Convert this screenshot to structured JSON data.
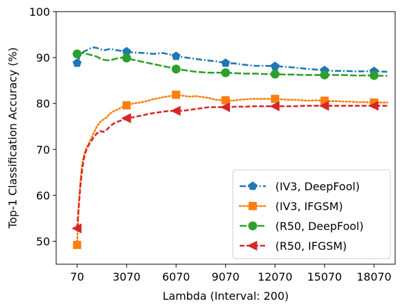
{
  "chart_data": {
    "type": "line",
    "title": "",
    "xlabel": "Lambda (Interval: 200)",
    "ylabel": "Top-1 Classification Accuracy (%)",
    "xlim": [
      -1200,
      19350
    ],
    "ylim": [
      45,
      100
    ],
    "xticks": [
      70,
      3070,
      6070,
      9070,
      12070,
      15070,
      18070
    ],
    "xtick_labels": [
      "70",
      "3070",
      "6070",
      "9070",
      "12070",
      "15070",
      "18070"
    ],
    "yticks": [
      50,
      60,
      70,
      80,
      90,
      100
    ],
    "ytick_labels": [
      "50",
      "60",
      "70",
      "80",
      "90",
      "100"
    ],
    "grid": false,
    "legend_position": "lower-right",
    "series": [
      {
        "name": "(IV3, DeepFool)",
        "color": "#1f77b4",
        "linestyle": "dash-dot",
        "marker": "pentagon",
        "x": [
          70,
          270,
          470,
          670,
          870,
          1070,
          1270,
          1470,
          1670,
          1870,
          2070,
          2470,
          2870,
          3070,
          3470,
          4070,
          4670,
          5270,
          5870,
          6070,
          6670,
          7270,
          7870,
          8470,
          9070,
          9670,
          10270,
          10870,
          11470,
          12070,
          12670,
          13270,
          13870,
          14470,
          15070,
          15670,
          16270,
          16870,
          17470,
          18070,
          18870
        ],
        "y": [
          88.8,
          90.5,
          91.3,
          91.6,
          92.0,
          92.2,
          92.1,
          91.8,
          91.6,
          91.7,
          91.9,
          91.6,
          91.4,
          91.3,
          91.1,
          91.0,
          90.8,
          91.0,
          90.5,
          90.3,
          90.0,
          89.7,
          89.4,
          89.2,
          88.8,
          88.7,
          88.4,
          88.2,
          88.2,
          88.1,
          88.0,
          87.8,
          87.6,
          87.4,
          87.2,
          87.1,
          87.1,
          87.0,
          87.0,
          87.0,
          86.9
        ],
        "marker_x": [
          70,
          3070,
          6070,
          9070,
          12070,
          15070,
          18070
        ],
        "marker_y": [
          88.8,
          91.3,
          90.3,
          88.8,
          88.1,
          87.2,
          87.0
        ]
      },
      {
        "name": "(IV3, IFGSM)",
        "color": "#ff7f0e",
        "linestyle": "dotted",
        "marker": "square",
        "x": [
          70,
          170,
          270,
          370,
          470,
          570,
          670,
          870,
          1070,
          1270,
          1470,
          1670,
          1870,
          2070,
          2270,
          2470,
          2670,
          2870,
          3070,
          3470,
          3870,
          4270,
          4670,
          5070,
          5470,
          5870,
          6070,
          6470,
          6870,
          7270,
          7670,
          8070,
          8470,
          8870,
          9070,
          9470,
          9870,
          10270,
          10670,
          11070,
          11470,
          12070,
          12470,
          12870,
          13270,
          13670,
          14070,
          14470,
          15070,
          15470,
          15870,
          16270,
          16670,
          17070,
          17470,
          18070,
          18870
        ],
        "y": [
          49.2,
          58.0,
          63.0,
          66.5,
          68.5,
          69.8,
          70.5,
          72.0,
          73.5,
          75.0,
          76.0,
          76.5,
          77.0,
          77.8,
          78.3,
          78.6,
          79.0,
          79.3,
          79.6,
          80.0,
          80.2,
          80.5,
          80.9,
          81.2,
          81.5,
          81.7,
          81.9,
          81.7,
          81.5,
          81.6,
          81.4,
          81.2,
          80.8,
          80.7,
          80.7,
          80.6,
          80.8,
          80.9,
          81.0,
          81.0,
          81.0,
          81.0,
          80.9,
          80.8,
          80.8,
          80.7,
          80.6,
          80.7,
          80.6,
          80.5,
          80.5,
          80.4,
          80.4,
          80.3,
          80.3,
          80.2,
          80.2
        ],
        "marker_x": [
          70,
          3070,
          6070,
          9070,
          12070,
          15070,
          18070
        ],
        "marker_y": [
          49.2,
          79.6,
          81.9,
          80.7,
          81.0,
          80.6,
          80.2
        ]
      },
      {
        "name": "(R50, DeepFool)",
        "color": "#2ca02c",
        "linestyle": "long-dash",
        "marker": "circle",
        "x": [
          70,
          370,
          670,
          970,
          1270,
          1570,
          1870,
          2170,
          2470,
          2770,
          3070,
          3470,
          3870,
          4270,
          4670,
          5070,
          5470,
          5870,
          6070,
          6470,
          6870,
          7270,
          7670,
          8070,
          8470,
          9070,
          9670,
          10270,
          10870,
          11470,
          12070,
          12670,
          13270,
          13870,
          14470,
          15070,
          15670,
          16270,
          16870,
          17470,
          18070,
          18870
        ],
        "y": [
          90.8,
          91.0,
          90.8,
          90.5,
          90.2,
          89.6,
          89.4,
          89.5,
          89.8,
          90.0,
          89.9,
          89.5,
          89.2,
          88.9,
          88.6,
          88.3,
          88.0,
          87.7,
          87.5,
          87.3,
          87.1,
          86.9,
          86.8,
          86.7,
          86.7,
          86.7,
          86.6,
          86.5,
          86.5,
          86.4,
          86.4,
          86.3,
          86.3,
          86.2,
          86.2,
          86.2,
          86.2,
          86.2,
          86.1,
          86.1,
          86.1,
          86.0
        ],
        "marker_x": [
          70,
          3070,
          6070,
          9070,
          12070,
          15070,
          18070
        ],
        "marker_y": [
          90.8,
          89.9,
          87.5,
          86.7,
          86.4,
          86.2,
          86.1
        ]
      },
      {
        "name": "(R50, IFGSM)",
        "color": "#d62728",
        "linestyle": "dashed",
        "marker": "triangle-left",
        "x": [
          70,
          170,
          270,
          370,
          470,
          570,
          670,
          870,
          1070,
          1270,
          1470,
          1670,
          1870,
          2070,
          2270,
          2470,
          2670,
          2870,
          3070,
          3470,
          3870,
          4270,
          4670,
          5070,
          5470,
          5870,
          6070,
          6470,
          6870,
          7270,
          7670,
          8070,
          8470,
          8870,
          9070,
          9670,
          10270,
          10870,
          11470,
          12070,
          12670,
          13270,
          13870,
          14470,
          15070,
          15670,
          16270,
          16870,
          17470,
          18070,
          18870
        ],
        "y": [
          52.8,
          57.5,
          62.0,
          65.5,
          67.8,
          69.2,
          70.3,
          71.5,
          72.6,
          73.5,
          74.0,
          73.8,
          74.3,
          75.0,
          75.6,
          76.0,
          76.2,
          76.5,
          76.8,
          77.0,
          77.3,
          77.6,
          77.9,
          78.1,
          78.3,
          78.4,
          78.4,
          78.4,
          78.6,
          78.8,
          79.0,
          79.2,
          79.2,
          79.2,
          79.2,
          79.3,
          79.3,
          79.4,
          79.4,
          79.4,
          79.4,
          79.4,
          79.5,
          79.5,
          79.5,
          79.5,
          79.5,
          79.5,
          79.5,
          79.5,
          79.5
        ],
        "marker_x": [
          70,
          3070,
          6070,
          9070,
          12070,
          15070,
          18070
        ],
        "marker_y": [
          52.8,
          76.8,
          78.4,
          79.2,
          79.4,
          79.5,
          79.5
        ]
      }
    ]
  }
}
